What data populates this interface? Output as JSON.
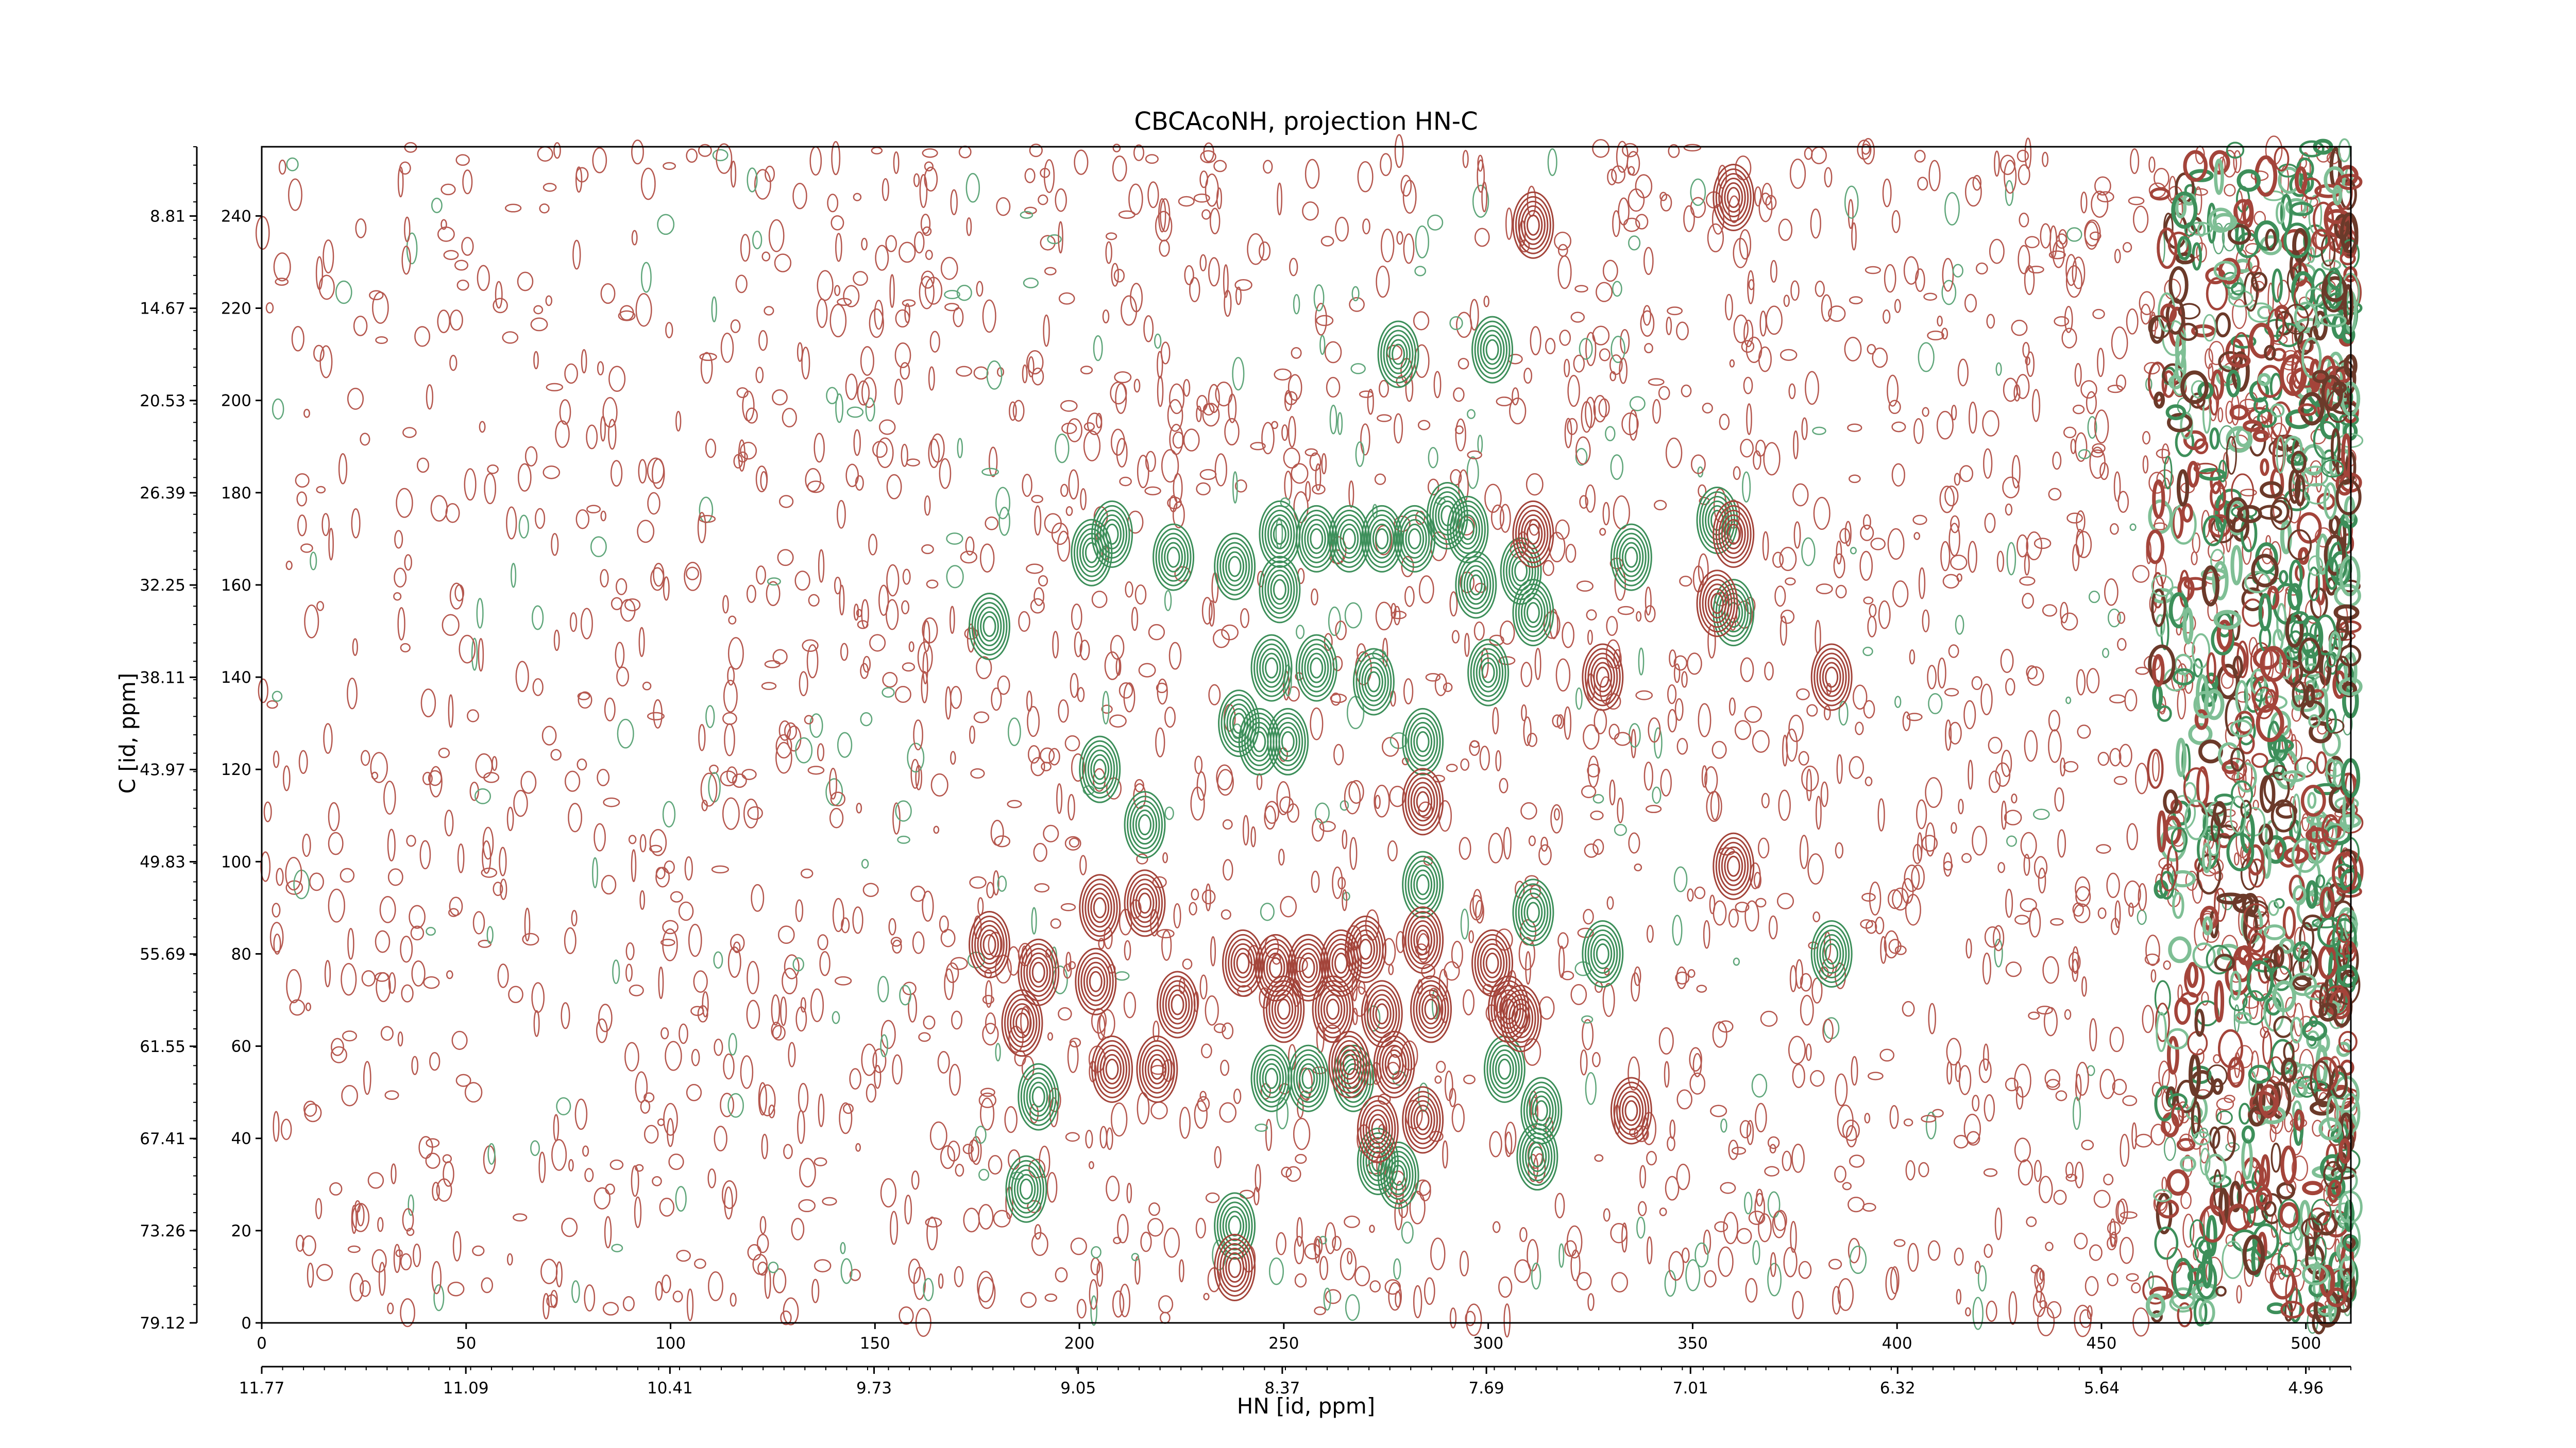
{
  "chart_data": {
    "type": "contour",
    "title": "CBCAcoNH, projection HN-C",
    "xlabel": "HN [id, ppm]",
    "ylabel": "C [id, ppm]",
    "xlim": [
      0,
      511
    ],
    "ylim": [
      0,
      255
    ],
    "xticks": [
      0,
      50,
      100,
      150,
      200,
      250,
      300,
      350,
      400,
      450,
      500
    ],
    "yticks": [
      0,
      20,
      40,
      60,
      80,
      100,
      120,
      140,
      160,
      180,
      200,
      220,
      240
    ],
    "x2lim": [
      11.77,
      4.81
    ],
    "x2ticks": [
      11.77,
      11.09,
      10.41,
      9.73,
      9.05,
      8.37,
      7.69,
      7.01,
      6.32,
      5.64,
      4.96
    ],
    "y2lim": [
      79.12,
      4.41
    ],
    "y2ticks": [
      79.12,
      73.26,
      67.41,
      61.55,
      55.69,
      49.83,
      43.97,
      38.11,
      32.25,
      26.39,
      20.53,
      14.67,
      8.81
    ],
    "series": [
      {
        "color": "#3d8f5a",
        "x": [
          278,
          301,
          203,
          208,
          223,
          238,
          249,
          249,
          258,
          266,
          274,
          282,
          290,
          295,
          297,
          308,
          311,
          335,
          178,
          247,
          258,
          272,
          300,
          239,
          244,
          251,
          284,
          205,
          216,
          284,
          311,
          328,
          384,
          360,
          356,
          247,
          256,
          267,
          304,
          313,
          312,
          273,
          278,
          187,
          190,
          238
        ],
        "y": [
          210,
          211,
          167,
          171,
          166,
          164,
          171,
          159,
          170,
          170,
          170,
          170,
          175,
          172,
          160,
          163,
          154,
          166,
          151,
          142,
          142,
          139,
          141,
          130,
          126,
          126,
          126,
          120,
          108,
          95,
          89,
          80,
          80,
          154,
          174,
          53,
          53,
          53,
          55,
          46,
          36,
          35,
          32,
          29,
          49,
          21
        ]
      },
      {
        "color": "#a3443a",
        "x": [
          311,
          360,
          311,
          360,
          356,
          328,
          384,
          284,
          360,
          205,
          216,
          178,
          190,
          186,
          204,
          224,
          208,
          219,
          240,
          248,
          256,
          264,
          270,
          284,
          250,
          262,
          274,
          286,
          301,
          305,
          308,
          277,
          273,
          284,
          335,
          238,
          266
        ],
        "y": [
          238,
          244,
          171,
          171,
          156,
          140,
          140,
          113,
          99,
          90,
          91,
          82,
          76,
          65,
          74,
          69,
          55,
          55,
          78,
          77,
          77,
          78,
          81,
          83,
          68,
          68,
          67,
          68,
          78,
          68,
          66,
          56,
          42,
          44,
          46,
          12,
          56
        ]
      }
    ]
  }
}
